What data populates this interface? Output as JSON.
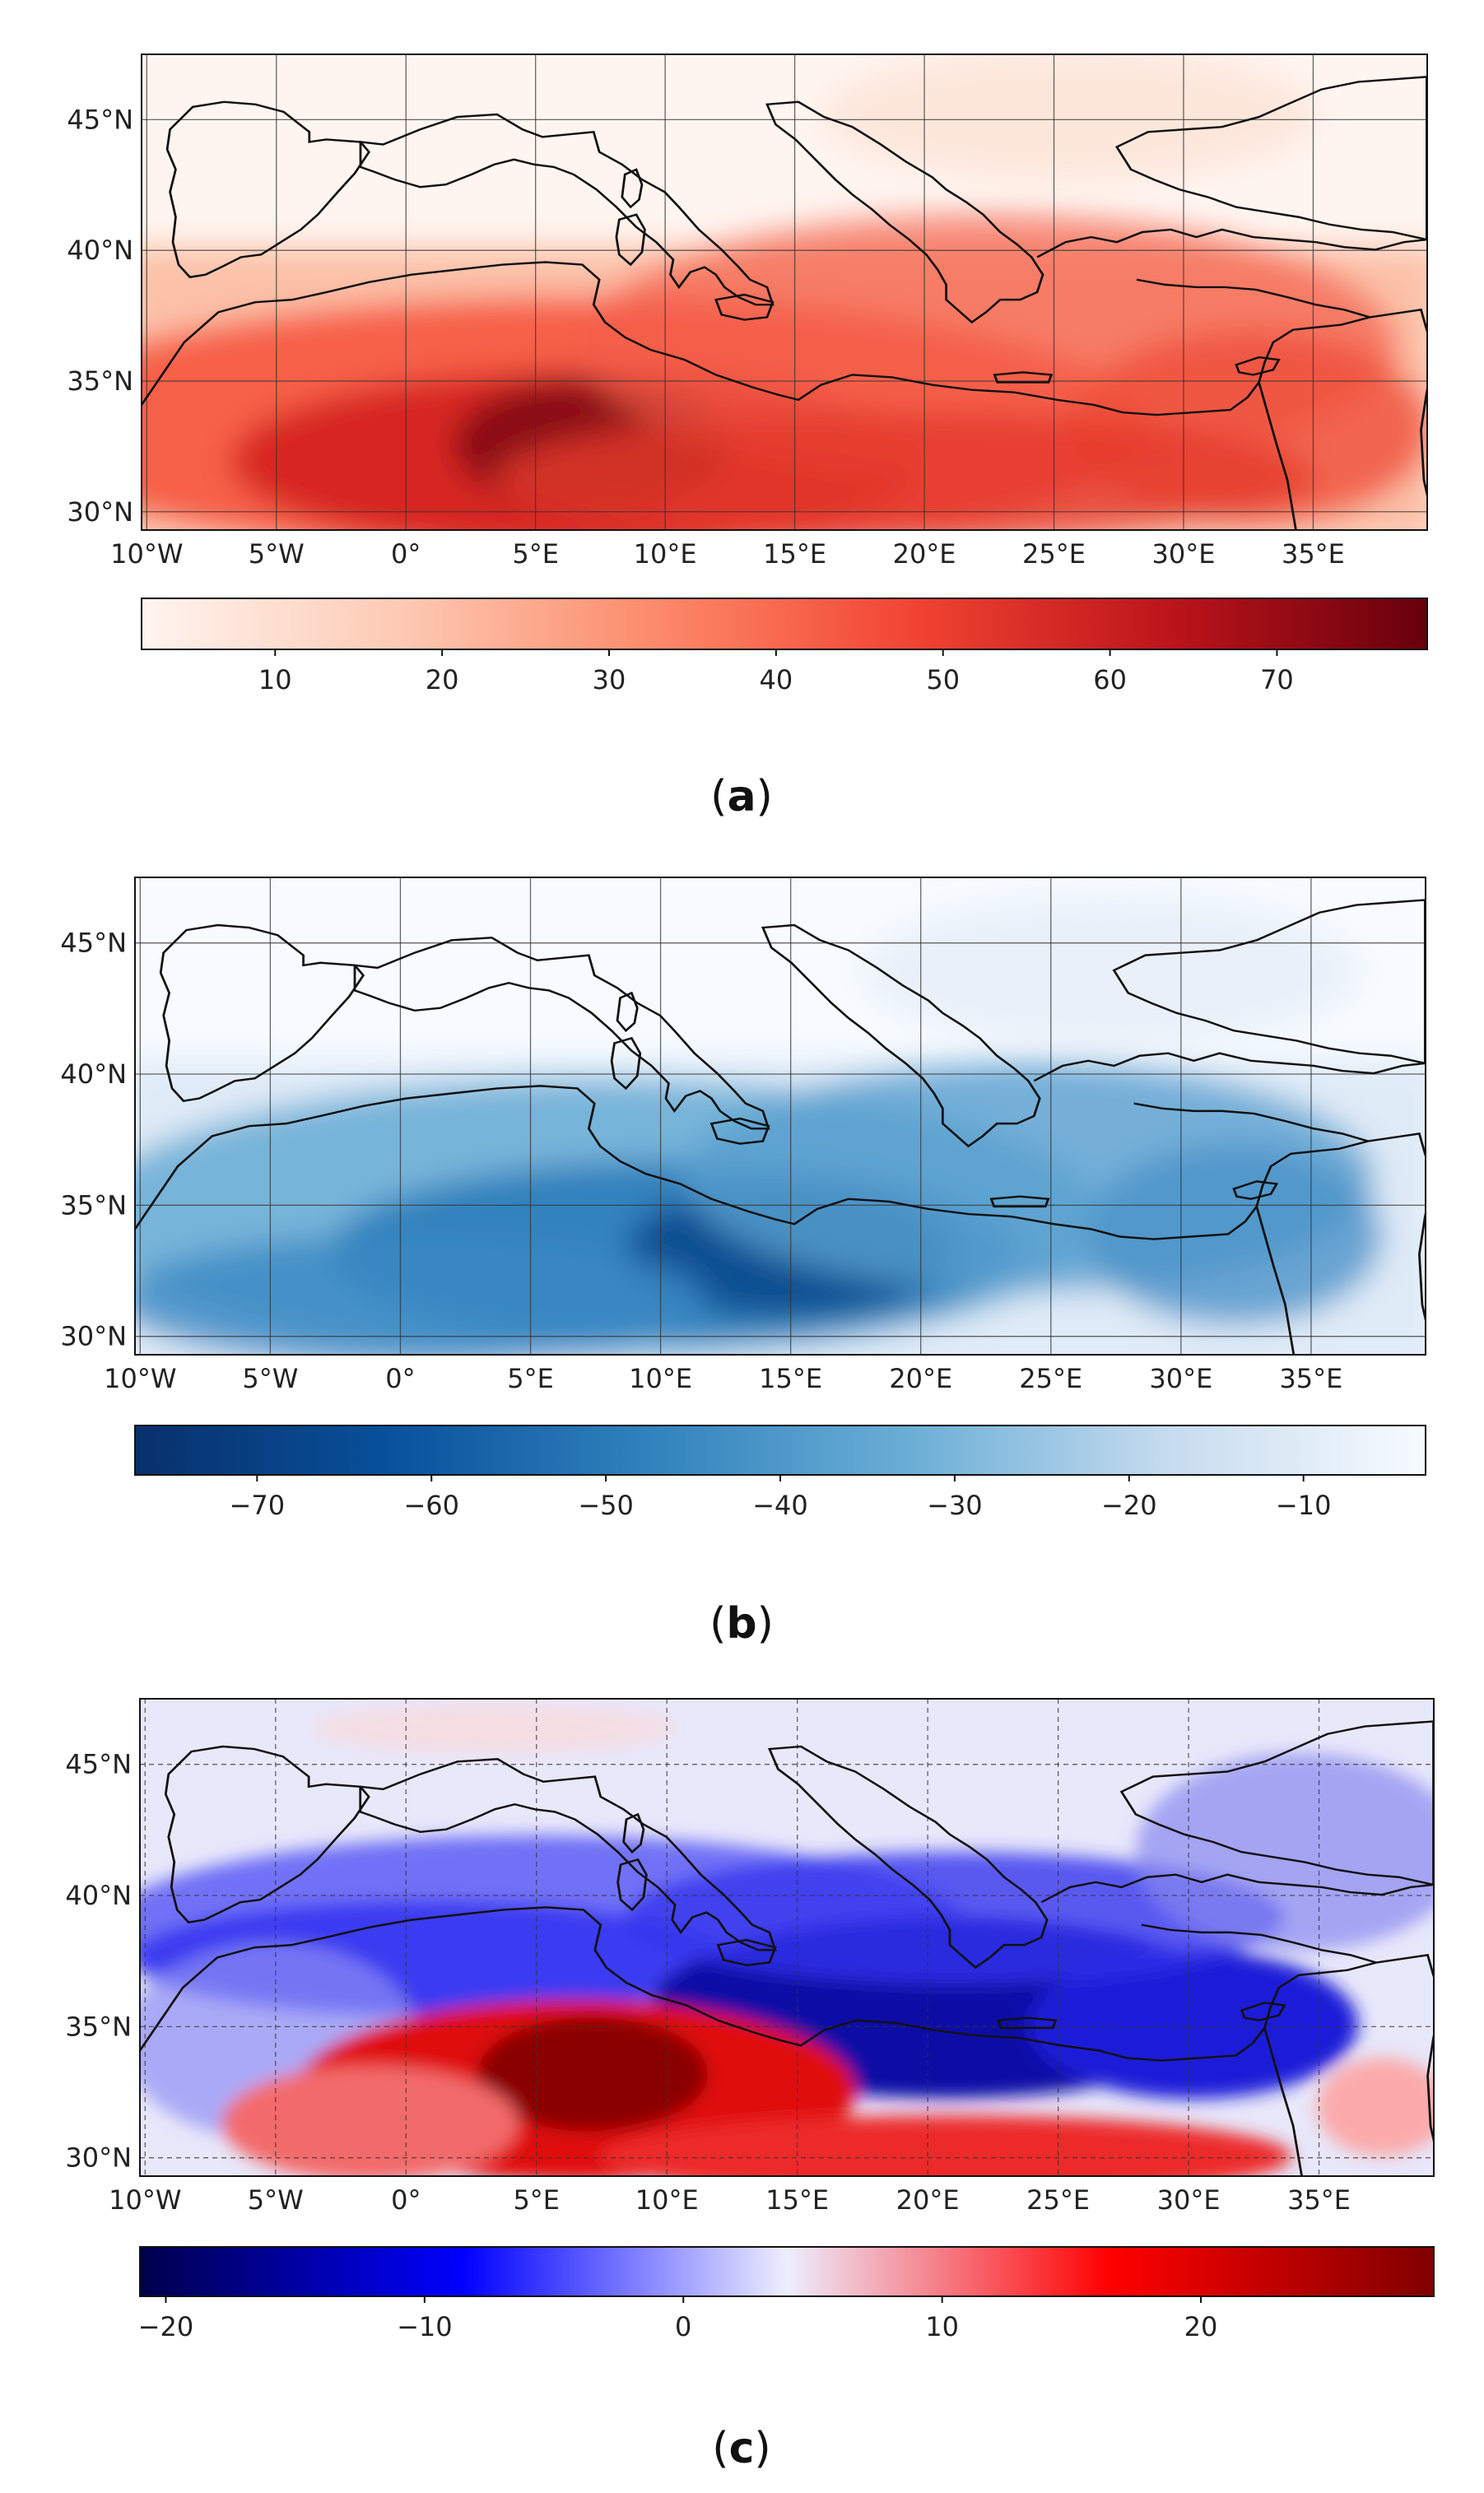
{
  "figure": {
    "axes": {
      "lat_ticks": [
        "45°N",
        "40°N",
        "35°N",
        "30°N"
      ],
      "lon_ticks": [
        "10°W",
        "5°W",
        "0°",
        "5°E",
        "10°E",
        "15°E",
        "20°E",
        "25°E",
        "30°E",
        "35°E"
      ],
      "lat_values": [
        45,
        40,
        35,
        30
      ],
      "lon_values": [
        -10,
        -5,
        0,
        5,
        10,
        15,
        20,
        25,
        30,
        35
      ],
      "lat_range": [
        29.3,
        47.5
      ],
      "lon_range": [
        -10.2,
        39.4
      ],
      "grid": true,
      "coastlines": true
    },
    "panels": [
      {
        "id": "a",
        "label": "a",
        "colormap": "Reds",
        "colors": [
          "#fff5f0",
          "#fdcab4",
          "#fc8a6a",
          "#f14432",
          "#bc141a",
          "#67000d"
        ],
        "colorbar_range": [
          2,
          79
        ],
        "colorbar_ticks": [
          {
            "label": "10",
            "value": 10
          },
          {
            "label": "20",
            "value": 20
          },
          {
            "label": "30",
            "value": 30
          },
          {
            "label": "40",
            "value": 40
          },
          {
            "label": "50",
            "value": 50
          },
          {
            "label": "60",
            "value": 60
          },
          {
            "label": "70",
            "value": 70
          }
        ]
      },
      {
        "id": "b",
        "label": "b",
        "colormap": "Blues (reversed)",
        "colors": [
          "#08306b",
          "#08519c",
          "#3182bd",
          "#6baed6",
          "#c6dbef",
          "#f7fbff"
        ],
        "colorbar_range": [
          -77,
          -3
        ],
        "colorbar_ticks": [
          {
            "label": "−70",
            "value": -70
          },
          {
            "label": "−60",
            "value": -60
          },
          {
            "label": "−50",
            "value": -50
          },
          {
            "label": "−40",
            "value": -40
          },
          {
            "label": "−30",
            "value": -30
          },
          {
            "label": "−20",
            "value": -20
          },
          {
            "label": "−10",
            "value": -10
          }
        ]
      },
      {
        "id": "c",
        "label": "c",
        "colormap": "seismic",
        "colors": [
          "#00004c",
          "#0000ff",
          "#eeeeff",
          "#ff0000",
          "#800000"
        ],
        "colorbar_range": [
          -21,
          29
        ],
        "colorbar_ticks": [
          {
            "label": "−20",
            "value": -20
          },
          {
            "label": "−10",
            "value": -10
          },
          {
            "label": "0",
            "value": 0
          },
          {
            "label": "10",
            "value": 10
          },
          {
            "label": "20",
            "value": 20
          }
        ]
      }
    ]
  }
}
